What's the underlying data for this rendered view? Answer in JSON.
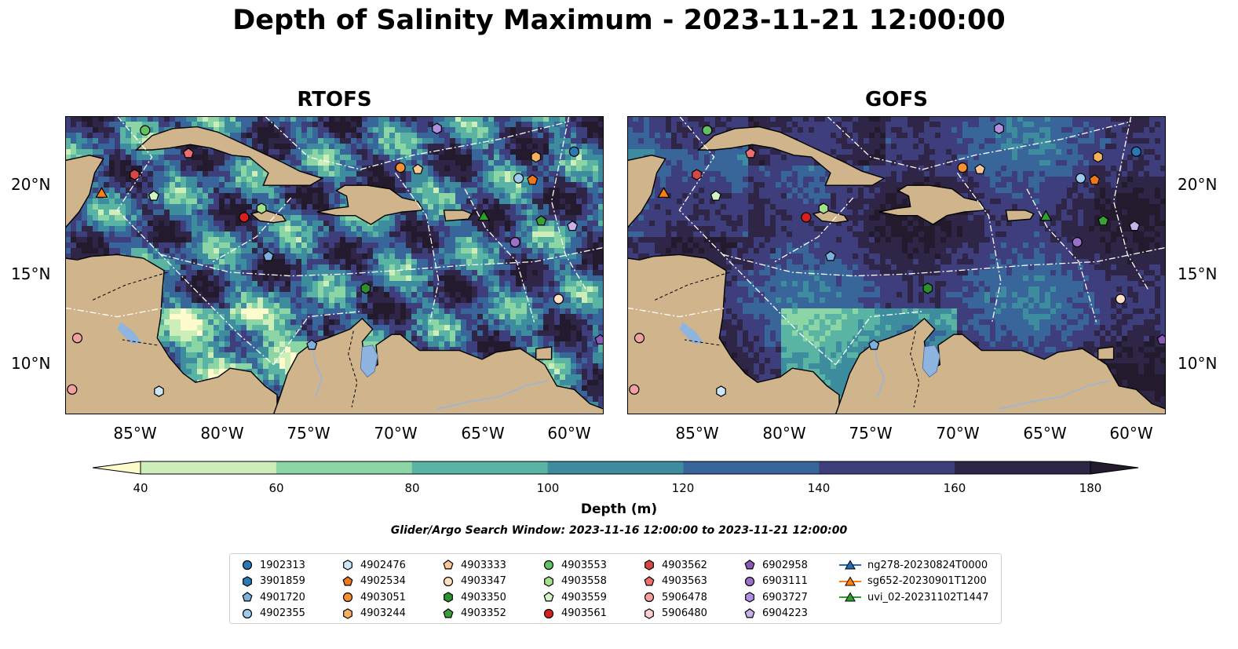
{
  "title": "Depth of Salinity Maximum - 2023-11-21 12:00:00",
  "panels": [
    {
      "title": "RTOFS",
      "model": "rtofs"
    },
    {
      "title": "GOFS",
      "model": "gofs"
    }
  ],
  "map": {
    "lon_range": [
      -89,
      -58
    ],
    "lat_range": [
      7,
      23.8
    ],
    "lon_ticks": [
      -85,
      -80,
      -75,
      -70,
      -65,
      -60
    ],
    "lon_tick_labels": [
      "85°W",
      "80°W",
      "75°W",
      "70°W",
      "65°W",
      "60°W"
    ],
    "lat_ticks": [
      10,
      15,
      20
    ],
    "lat_tick_labels": [
      "10°N",
      "15°N",
      "20°N"
    ],
    "land_color": "#cfb48c",
    "lake_color": "#8fb4e0",
    "river_color": "#9bb4d8"
  },
  "colorbar": {
    "label": "Depth (m)",
    "ticks": [
      40,
      60,
      80,
      100,
      120,
      140,
      160,
      180
    ],
    "tick_labels": [
      "40",
      "60",
      "80",
      "100",
      "120",
      "140",
      "160",
      "180"
    ],
    "colors": [
      "#fefccd",
      "#cdedb9",
      "#8bd6a4",
      "#5ab4a4",
      "#3e8d9f",
      "#39669a",
      "#3e3e7c",
      "#2f2647",
      "#231a2e"
    ],
    "extend": "both"
  },
  "subtitle": "Glider/Argo Search Window: 2023-11-16 12:00:00 to 2023-11-21 12:00:00",
  "legend": [
    {
      "label": "1902313",
      "marker": "circle",
      "color": "#2a78b4"
    },
    {
      "label": "3901859",
      "marker": "hexagon",
      "color": "#2a78b4"
    },
    {
      "label": "4901720",
      "marker": "pentagon",
      "color": "#7db0de"
    },
    {
      "label": "4902355",
      "marker": "circle",
      "color": "#9ecbed"
    },
    {
      "label": "4902476",
      "marker": "hexagon",
      "color": "#cde6f7"
    },
    {
      "label": "4902534",
      "marker": "pentagon",
      "color": "#f07818"
    },
    {
      "label": "4903051",
      "marker": "circle",
      "color": "#f59030"
    },
    {
      "label": "4903244",
      "marker": "hexagon",
      "color": "#f7b060"
    },
    {
      "label": "4903333",
      "marker": "pentagon",
      "color": "#f9c896"
    },
    {
      "label": "4903347",
      "marker": "circle",
      "color": "#fde0c4"
    },
    {
      "label": "4903350",
      "marker": "hexagon",
      "color": "#2e8f2e"
    },
    {
      "label": "4903352",
      "marker": "pentagon",
      "color": "#39a037"
    },
    {
      "label": "4903553",
      "marker": "circle",
      "color": "#63c063"
    },
    {
      "label": "4903558",
      "marker": "hexagon",
      "color": "#a4e08c"
    },
    {
      "label": "4903559",
      "marker": "pentagon",
      "color": "#d4f3c4"
    },
    {
      "label": "4903561",
      "marker": "circle",
      "color": "#d62020"
    },
    {
      "label": "4903562",
      "marker": "hexagon",
      "color": "#d64848"
    },
    {
      "label": "4903563",
      "marker": "pentagon",
      "color": "#ec7070"
    },
    {
      "label": "5906478",
      "marker": "circle",
      "color": "#f2a0a0"
    },
    {
      "label": "5906480",
      "marker": "hexagon",
      "color": "#fcd0d0"
    },
    {
      "label": "6902958",
      "marker": "pentagon",
      "color": "#8a5ab8"
    },
    {
      "label": "6903111",
      "marker": "circle",
      "color": "#9a70c8"
    },
    {
      "label": "6903727",
      "marker": "hexagon",
      "color": "#b08ee0"
    },
    {
      "label": "6904223",
      "marker": "pentagon",
      "color": "#c8b0ec"
    },
    {
      "label": "ng278-20230824T0000",
      "marker": "triangle-line",
      "color": "#1f6eb4"
    },
    {
      "label": "sg652-20230901T1200",
      "marker": "triangle-line",
      "color": "#ff7f0e"
    },
    {
      "label": "uvi_02-20231102T1447",
      "marker": "triangle-line",
      "color": "#2ca02c"
    }
  ],
  "floats": [
    {
      "id": "1902313",
      "lon": -59.7,
      "lat": 21.8
    },
    {
      "id": "4901720",
      "lon": -77.3,
      "lat": 15.9
    },
    {
      "id": "4901720",
      "lon": -74.8,
      "lat": 10.9
    },
    {
      "id": "4902355",
      "lon": -62.9,
      "lat": 20.3
    },
    {
      "id": "4902476",
      "lon": -83.6,
      "lat": 8.3
    },
    {
      "id": "4902534",
      "lon": -62.1,
      "lat": 20.2
    },
    {
      "id": "4903051",
      "lon": -69.7,
      "lat": 20.9
    },
    {
      "id": "4903244",
      "lon": -61.9,
      "lat": 21.5
    },
    {
      "id": "4903333",
      "lon": -68.7,
      "lat": 20.8
    },
    {
      "id": "4903347",
      "lon": -60.6,
      "lat": 13.5
    },
    {
      "id": "4903350",
      "lon": -71.7,
      "lat": 14.1
    },
    {
      "id": "4903352",
      "lon": -61.6,
      "lat": 17.9
    },
    {
      "id": "4903553",
      "lon": -84.4,
      "lat": 23.0
    },
    {
      "id": "4903558",
      "lon": -77.7,
      "lat": 18.6
    },
    {
      "id": "4903559",
      "lon": -83.9,
      "lat": 19.3
    },
    {
      "id": "4903561",
      "lon": -78.7,
      "lat": 18.1
    },
    {
      "id": "4903562",
      "lon": -85.0,
      "lat": 20.5
    },
    {
      "id": "4903563",
      "lon": -81.9,
      "lat": 21.7
    },
    {
      "id": "5906478",
      "lon": -88.6,
      "lat": 8.4
    },
    {
      "id": "5906478",
      "lon": -88.3,
      "lat": 11.3
    },
    {
      "id": "6902958",
      "lon": -58.2,
      "lat": 11.2
    },
    {
      "id": "6903111",
      "lon": -63.1,
      "lat": 16.7
    },
    {
      "id": "6903727",
      "lon": -67.6,
      "lat": 23.1
    },
    {
      "id": "6904223",
      "lon": -59.8,
      "lat": 17.6
    }
  ],
  "gliders": [
    {
      "id": "sg652-20230901T1200",
      "lon": -86.9,
      "lat": 19.5
    },
    {
      "id": "uvi_02-20231102T1447",
      "lon": -64.9,
      "lat": 18.2
    }
  ]
}
